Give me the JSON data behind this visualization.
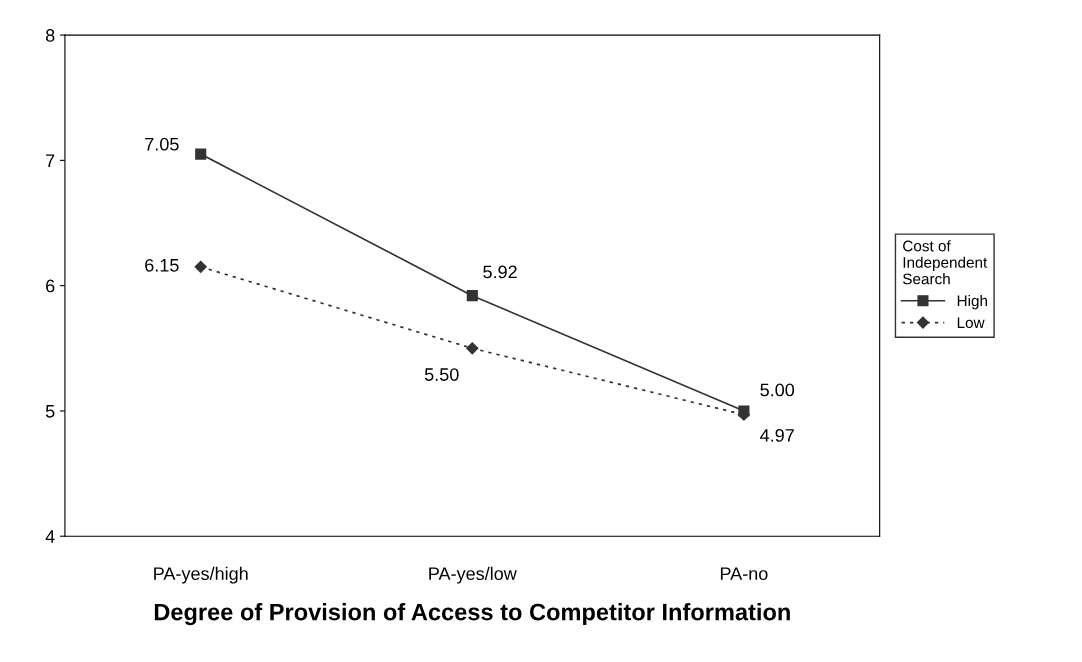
{
  "chart_data": {
    "type": "line",
    "xlabel": "Degree of Provision of Access to Competitor Information",
    "legend_title": "Cost of\nIndependent\nSearch",
    "categories": [
      "PA-yes/high",
      "PA-yes/low",
      "PA-no"
    ],
    "ylim": [
      4,
      8
    ],
    "yticks": [
      4,
      5,
      6,
      7,
      8
    ],
    "grid": false,
    "legend": "right",
    "series": [
      {
        "name": "High",
        "color": "#333333",
        "marker": "square",
        "line_style": "solid",
        "values": [
          7.05,
          5.92,
          5.0
        ],
        "value_labels": [
          "7.05",
          "5.92",
          "5.00"
        ]
      },
      {
        "name": "Low",
        "color": "#333333",
        "marker": "diamond",
        "line_style": "dotted",
        "values": [
          6.15,
          5.5,
          4.97
        ],
        "value_labels": [
          "6.15",
          "5.50",
          "4.97"
        ]
      }
    ]
  }
}
